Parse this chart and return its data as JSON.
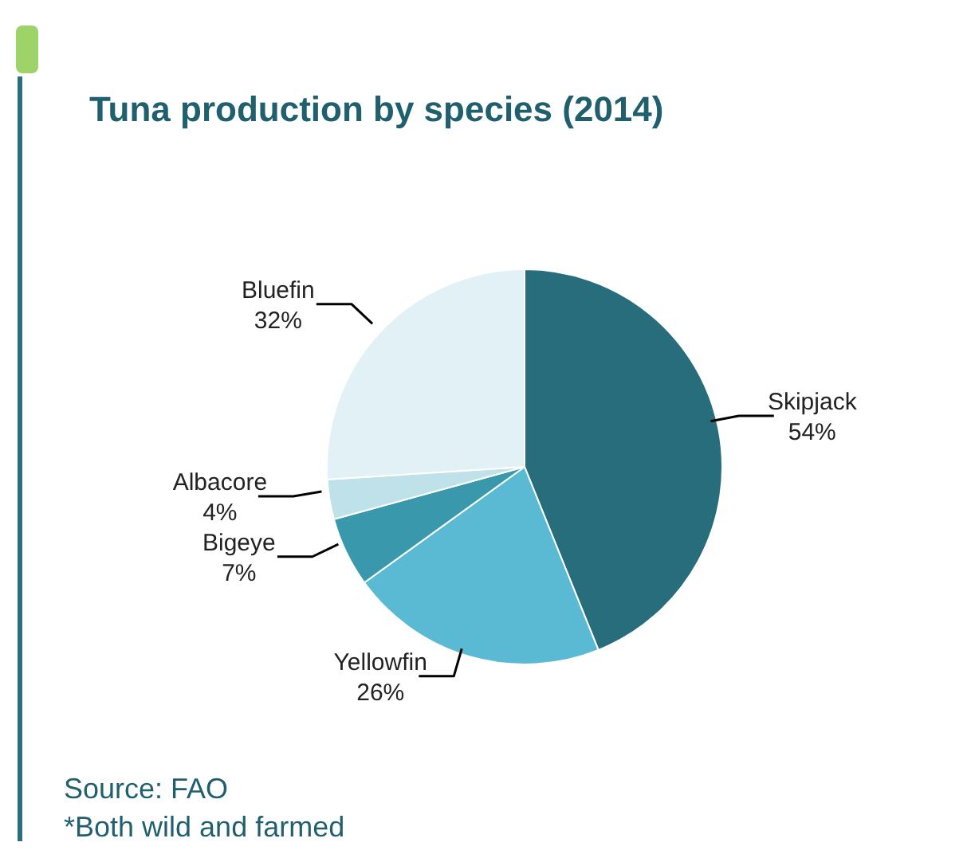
{
  "chart_data": {
    "type": "pie",
    "title": "Tuna production by species (2014)",
    "categories": [
      "Skipjack",
      "Yellowfin",
      "Bigeye",
      "Albacore",
      "Bluefin"
    ],
    "values": [
      54,
      26,
      7,
      4,
      32
    ],
    "value_labels": [
      "54%",
      "26%",
      "7%",
      "4%",
      "32%"
    ],
    "colors": [
      "#286d7b",
      "#5bbad3",
      "#3a98ad",
      "#bfe1ea",
      "#e2f1f6"
    ],
    "annotations": [
      "Source: FAO",
      "*Both wild and farmed"
    ]
  }
}
